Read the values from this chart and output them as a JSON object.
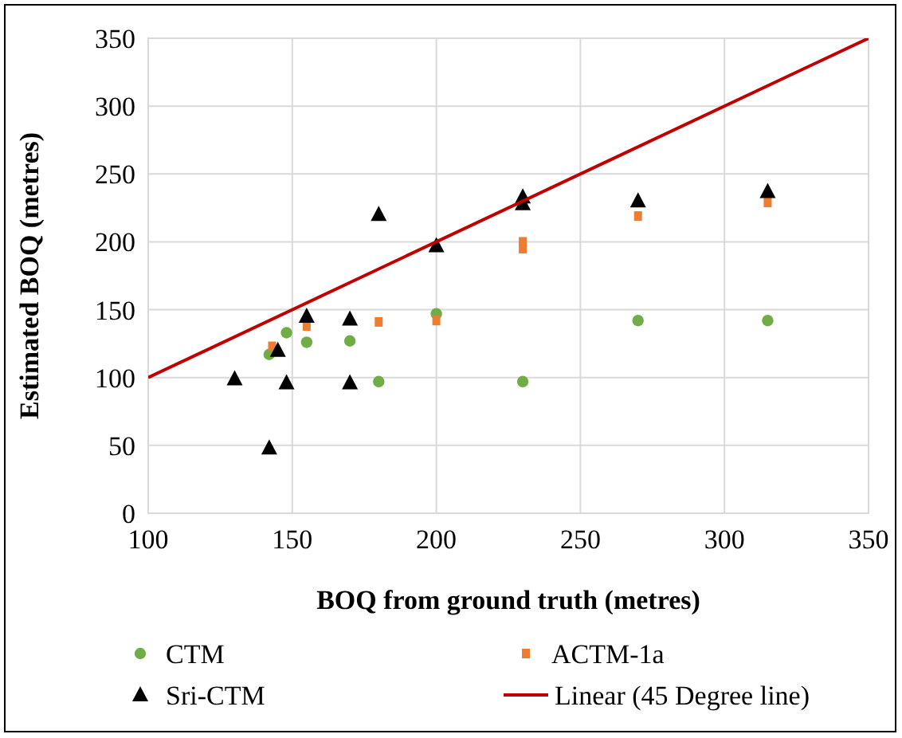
{
  "chart_data": {
    "type": "scatter",
    "xlabel": "BOQ from ground truth (metres)",
    "ylabel": "Estimated BOQ (metres)",
    "xlim": [
      100,
      350
    ],
    "xticks": [
      100,
      150,
      200,
      250,
      300,
      350
    ],
    "ylim": [
      0,
      350
    ],
    "yticks": [
      0,
      50,
      100,
      150,
      200,
      250,
      300,
      350
    ],
    "grid": true,
    "legend": "bottom",
    "series": [
      {
        "name": "CTM",
        "color": "#70ad47",
        "marker": "circle",
        "x": [
          142,
          148,
          155,
          170,
          180,
          200,
          230,
          270,
          315
        ],
        "values": [
          117,
          133,
          126,
          127,
          97,
          147,
          97,
          142,
          142
        ]
      },
      {
        "name": "ACTM-1a",
        "color": "#ed7d31",
        "marker": "square",
        "x": [
          143,
          155,
          180,
          200,
          230,
          230,
          270,
          315
        ],
        "values": [
          123,
          138,
          141,
          142,
          195,
          200,
          219,
          229
        ]
      },
      {
        "name": "Sri-CTM",
        "color": "#000000",
        "marker": "triangle",
        "x": [
          130,
          142,
          145,
          148,
          155,
          170,
          170,
          180,
          200,
          230,
          230,
          270,
          315
        ],
        "values": [
          99,
          48,
          120,
          96,
          145,
          143,
          96,
          220,
          197,
          233,
          228,
          230,
          237
        ]
      },
      {
        "name": "Linear (45 Degree line)",
        "type": "line",
        "color": "#c00000",
        "marker": "none",
        "x": [
          100,
          350
        ],
        "values": [
          100,
          350
        ]
      }
    ]
  }
}
